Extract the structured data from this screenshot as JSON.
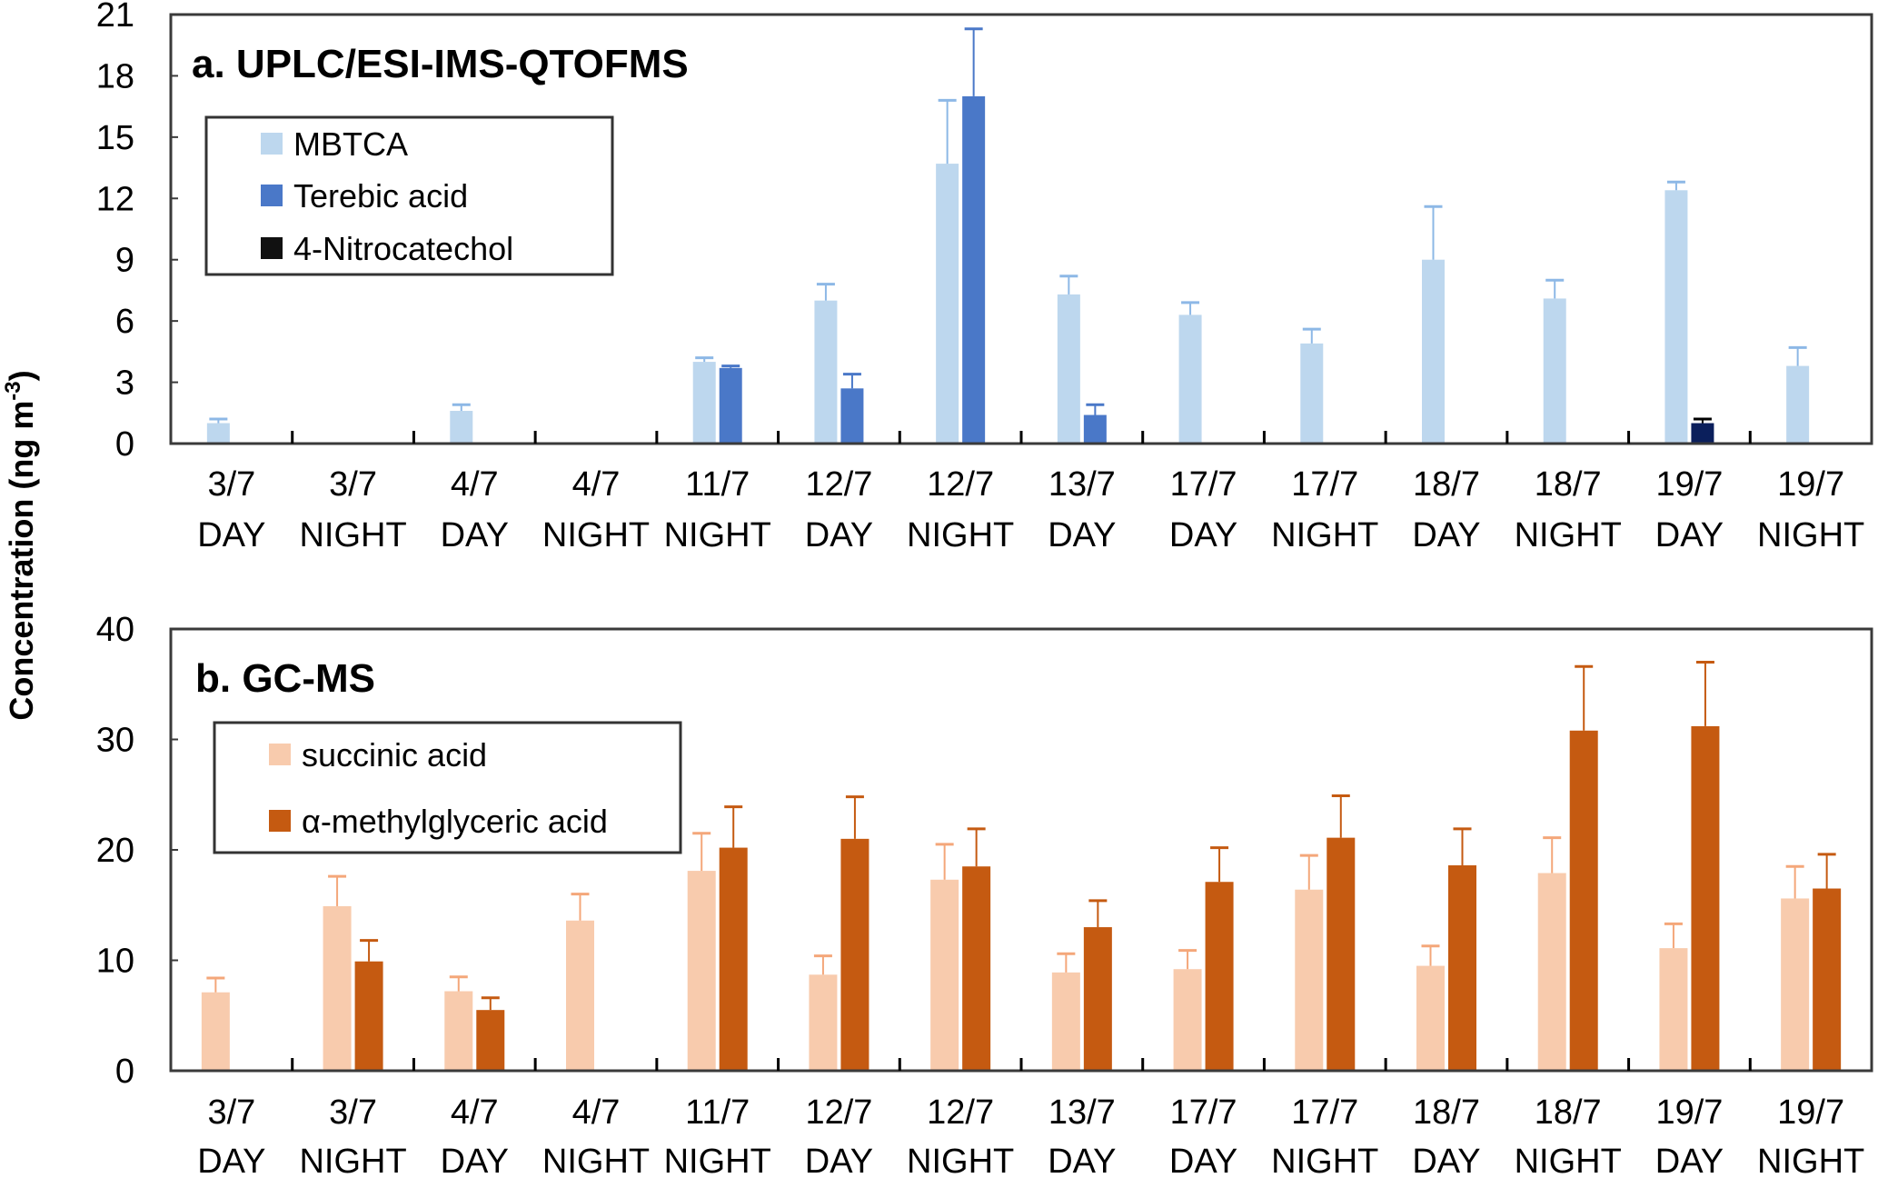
{
  "y_axis_label": "Concentration (ng m",
  "y_axis_label_sup": "-3",
  "y_axis_label_end": ")",
  "chart_data": [
    {
      "type": "bar",
      "title": "a. UPLC/ESI-IMS-QTOFMS",
      "ylim": [
        0,
        21
      ],
      "yticks": [
        "0",
        "3",
        "6",
        "9",
        "12",
        "15",
        "18",
        "21"
      ],
      "categories": [
        [
          "3/7",
          "DAY"
        ],
        [
          "3/7",
          "NIGHT"
        ],
        [
          "4/7",
          "DAY"
        ],
        [
          "4/7",
          "NIGHT"
        ],
        [
          "11/7",
          "NIGHT"
        ],
        [
          "12/7",
          "DAY"
        ],
        [
          "12/7",
          "NIGHT"
        ],
        [
          "13/7",
          "DAY"
        ],
        [
          "17/7",
          "DAY"
        ],
        [
          "17/7",
          "NIGHT"
        ],
        [
          "18/7",
          "DAY"
        ],
        [
          "18/7",
          "NIGHT"
        ],
        [
          "19/7",
          "DAY"
        ],
        [
          "19/7",
          "NIGHT"
        ]
      ],
      "legend": "top-left",
      "series": [
        {
          "name": "MBTCA",
          "color": "#bdd7ee",
          "err_color": "#8db8e6",
          "values": [
            1.0,
            0,
            1.6,
            0,
            4.0,
            7.0,
            13.7,
            7.3,
            6.3,
            4.9,
            9.0,
            7.1,
            12.4,
            3.8
          ],
          "err": [
            0.2,
            0,
            0.3,
            0,
            0.2,
            0.8,
            3.1,
            0.9,
            0.6,
            0.7,
            2.6,
            0.9,
            0.4,
            0.9
          ]
        },
        {
          "name": "Terebic acid",
          "color": "#4a78c8",
          "err_color": "#4a78c8",
          "values": [
            0,
            0,
            0,
            0,
            3.7,
            2.7,
            17.0,
            1.4,
            0,
            0,
            0,
            0,
            0,
            0
          ],
          "err": [
            0,
            0,
            0,
            0,
            0.1,
            0.7,
            3.3,
            0.5,
            0,
            0,
            0,
            0,
            0,
            0
          ]
        },
        {
          "name": "4-Nitrocatechol",
          "color": "#0b1f5c",
          "legend_color": "#111111",
          "err_color": "#000000",
          "values": [
            0,
            0,
            0,
            0,
            0,
            0,
            0,
            0,
            0,
            0,
            0,
            0,
            1.0,
            0.05
          ],
          "err": [
            0,
            0,
            0,
            0,
            0,
            0,
            0,
            0,
            0,
            0,
            0,
            0,
            0.2,
            0
          ]
        }
      ]
    },
    {
      "type": "bar",
      "title": "b. GC-MS",
      "ylim": [
        0,
        40
      ],
      "yticks": [
        "0",
        "10",
        "20",
        "30",
        "40"
      ],
      "categories": [
        [
          "3/7",
          "DAY"
        ],
        [
          "3/7",
          "NIGHT"
        ],
        [
          "4/7",
          "DAY"
        ],
        [
          "4/7",
          "NIGHT"
        ],
        [
          "11/7",
          "NIGHT"
        ],
        [
          "12/7",
          "DAY"
        ],
        [
          "12/7",
          "NIGHT"
        ],
        [
          "13/7",
          "DAY"
        ],
        [
          "17/7",
          "DAY"
        ],
        [
          "17/7",
          "NIGHT"
        ],
        [
          "18/7",
          "DAY"
        ],
        [
          "18/7",
          "NIGHT"
        ],
        [
          "19/7",
          "DAY"
        ],
        [
          "19/7",
          "NIGHT"
        ]
      ],
      "legend": "top-left",
      "series": [
        {
          "name": "succinic acid",
          "color": "#f8cbad",
          "err_color": "#f4a77a",
          "values": [
            7.1,
            14.9,
            7.2,
            13.6,
            18.1,
            8.7,
            17.3,
            8.9,
            9.2,
            16.4,
            9.5,
            17.9,
            11.1,
            15.6
          ],
          "err": [
            1.3,
            2.7,
            1.3,
            2.4,
            3.4,
            1.7,
            3.2,
            1.7,
            1.7,
            3.1,
            1.8,
            3.2,
            2.2,
            2.9
          ]
        },
        {
          "name": "α-methylglyceric acid",
          "color": "#c55a11",
          "err_color": "#c55a11",
          "values": [
            0,
            9.9,
            5.5,
            0,
            20.2,
            21.0,
            18.5,
            13.0,
            17.1,
            21.1,
            18.6,
            30.8,
            31.2,
            16.5
          ],
          "err": [
            0,
            1.9,
            1.1,
            0,
            3.7,
            3.8,
            3.4,
            2.4,
            3.1,
            3.8,
            3.3,
            5.8,
            5.8,
            3.1
          ]
        }
      ]
    }
  ]
}
